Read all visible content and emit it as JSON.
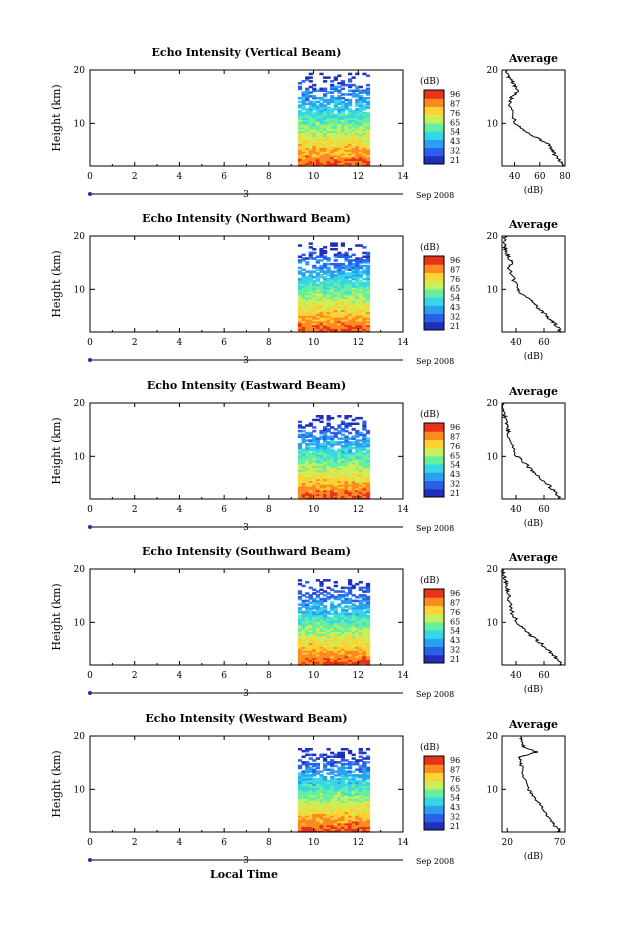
{
  "figure": {
    "bottom_label": "Local Time",
    "date_label": "Sep 2008",
    "day_label": "3",
    "colorbar_unit": "(dB)",
    "colorbar_ticks": [
      "96",
      "87",
      "76",
      "65",
      "54",
      "43",
      "32",
      "21"
    ],
    "colormap": [
      "#1f2fb8",
      "#2b5fe8",
      "#2aa0f2",
      "#36d6e6",
      "#66ef9e",
      "#c9f05a",
      "#ffd234",
      "#ff8a22",
      "#e8321a"
    ],
    "profile_title": "Average",
    "profile_xlabel": "(dB)"
  },
  "chart_data": [
    {
      "type": "heatmap",
      "title": "Echo Intensity (Vertical Beam)",
      "ylabel": "Height (km)",
      "xlim": [
        0,
        14
      ],
      "ylim": [
        2,
        20
      ],
      "x_ticks": [
        "0",
        "2",
        "4",
        "6",
        "8",
        "10",
        "12",
        "14"
      ],
      "y_ticks": [
        "20",
        "10"
      ],
      "data_x_range": [
        9.3,
        12.5
      ],
      "data_top_km": 19.5,
      "intensity_range_db": [
        21,
        96
      ],
      "profile": {
        "title": "Average",
        "xlabel": "(dB)",
        "x_ticks": [
          "40",
          "60",
          "80"
        ],
        "xlim": [
          30,
          80
        ],
        "heights": [
          2,
          3,
          4,
          5,
          6,
          7,
          8,
          9,
          10,
          12,
          14,
          15,
          16,
          17,
          18,
          19,
          20
        ],
        "values": [
          79,
          76,
          72,
          70,
          68,
          60,
          52,
          45,
          41,
          38,
          36,
          38,
          42,
          40,
          38,
          34,
          34
        ]
      }
    },
    {
      "type": "heatmap",
      "title": "Echo Intensity (Northward Beam)",
      "ylabel": "Height (km)",
      "xlim": [
        0,
        14
      ],
      "ylim": [
        2,
        20
      ],
      "x_ticks": [
        "0",
        "2",
        "4",
        "6",
        "8",
        "10",
        "12",
        "14"
      ],
      "y_ticks": [
        "20",
        "10"
      ],
      "data_x_range": [
        9.3,
        12.5
      ],
      "data_top_km": 18.5,
      "intensity_range_db": [
        21,
        96
      ],
      "profile": {
        "title": "Average",
        "xlabel": "(dB)",
        "x_ticks": [
          "40",
          "60"
        ],
        "xlim": [
          30,
          75
        ],
        "heights": [
          2,
          3,
          4,
          5,
          6,
          7,
          8,
          9,
          10,
          12,
          14,
          15,
          16,
          17,
          18,
          19,
          20
        ],
        "values": [
          72,
          70,
          66,
          62,
          58,
          54,
          50,
          45,
          41,
          38,
          35,
          37,
          35,
          33,
          32,
          32,
          32
        ]
      }
    },
    {
      "type": "heatmap",
      "title": "Echo Intensity (Eastward Beam)",
      "ylabel": "Height (km)",
      "xlim": [
        0,
        14
      ],
      "ylim": [
        2,
        20
      ],
      "x_ticks": [
        "0",
        "2",
        "4",
        "6",
        "8",
        "10",
        "12",
        "14"
      ],
      "y_ticks": [
        "20",
        "10"
      ],
      "data_x_range": [
        9.3,
        12.5
      ],
      "data_top_km": 17.5,
      "intensity_range_db": [
        21,
        96
      ],
      "profile": {
        "title": "Average",
        "xlabel": "(dB)",
        "x_ticks": [
          "40",
          "60"
        ],
        "xlim": [
          30,
          75
        ],
        "heights": [
          2,
          3,
          4,
          5,
          6,
          7,
          8,
          9,
          10,
          12,
          14,
          15,
          16,
          17,
          18,
          19,
          20
        ],
        "values": [
          72,
          69,
          65,
          62,
          57,
          53,
          49,
          45,
          41,
          37,
          35,
          34,
          33,
          32,
          32,
          31,
          31
        ]
      }
    },
    {
      "type": "heatmap",
      "title": "Echo Intensity (Southward Beam)",
      "ylabel": "Height (km)",
      "xlim": [
        0,
        14
      ],
      "ylim": [
        2,
        20
      ],
      "x_ticks": [
        "0",
        "2",
        "4",
        "6",
        "8",
        "10",
        "12",
        "14"
      ],
      "y_ticks": [
        "20",
        "10"
      ],
      "data_x_range": [
        9.3,
        12.5
      ],
      "data_top_km": 18.0,
      "intensity_range_db": [
        21,
        96
      ],
      "profile": {
        "title": "Average",
        "xlabel": "(dB)",
        "x_ticks": [
          "40",
          "60"
        ],
        "xlim": [
          30,
          75
        ],
        "heights": [
          2,
          3,
          4,
          5,
          6,
          7,
          8,
          9,
          10,
          12,
          14,
          15,
          16,
          17,
          18,
          19,
          20
        ],
        "values": [
          72,
          70,
          66,
          62,
          58,
          53,
          49,
          45,
          41,
          37,
          35,
          36,
          34,
          33,
          32,
          31,
          31
        ]
      }
    },
    {
      "type": "heatmap",
      "title": "Echo Intensity (Westward Beam)",
      "ylabel": "Height (km)",
      "xlim": [
        0,
        14
      ],
      "ylim": [
        2,
        20
      ],
      "x_ticks": [
        "0",
        "2",
        "4",
        "6",
        "8",
        "10",
        "12",
        "14"
      ],
      "y_ticks": [
        "20",
        "10"
      ],
      "data_x_range": [
        9.3,
        12.5
      ],
      "data_top_km": 17.5,
      "intensity_range_db": [
        21,
        96
      ],
      "profile": {
        "title": "Average",
        "xlabel": "(dB)",
        "x_ticks": [
          "20",
          "70"
        ],
        "xlim": [
          15,
          75
        ],
        "heights": [
          2,
          3,
          4,
          5,
          6,
          7,
          8,
          9,
          10,
          12,
          14,
          15,
          16,
          17,
          18,
          19,
          20
        ],
        "values": [
          70,
          66,
          62,
          58,
          55,
          52,
          48,
          44,
          40,
          36,
          34,
          33,
          32,
          48,
          36,
          33,
          33
        ]
      }
    }
  ]
}
